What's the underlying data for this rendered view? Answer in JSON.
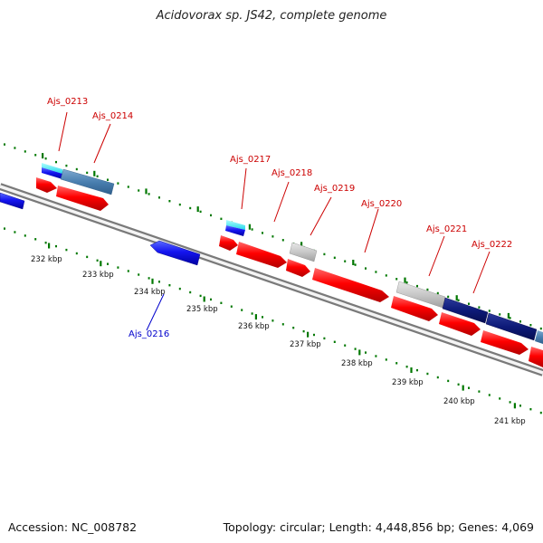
{
  "title": "Acidovorax sp. JS42, complete genome",
  "footer": {
    "accession": "Accession: NC_008782",
    "summary": "Topology: circular; Length: 4,448,856 bp; Genes: 4,069"
  },
  "colors": {
    "forward_gene": "#ff0000",
    "reverse_gene": "#0000ee",
    "hypothetical": "#c8c8c8",
    "tick": "#007700",
    "label_red": "#cc0000",
    "label_blue": "#0000cc",
    "backbone": "#8a8a8a"
  },
  "scale_labels": [
    "232 kbp",
    "233 kbp",
    "234 kbp",
    "235 kbp",
    "236 kbp",
    "237 kbp",
    "238 kbp",
    "239 kbp",
    "240 kbp",
    "241 kbp"
  ],
  "gene_labels": [
    {
      "text": "Ajs_0213",
      "color": "red"
    },
    {
      "text": "Ajs_0214",
      "color": "red"
    },
    {
      "text": "Ajs_0216",
      "color": "blue"
    },
    {
      "text": "Ajs_0217",
      "color": "red"
    },
    {
      "text": "Ajs_0218",
      "color": "red"
    },
    {
      "text": "Ajs_0219",
      "color": "red"
    },
    {
      "text": "Ajs_0220",
      "color": "red"
    },
    {
      "text": "Ajs_0221",
      "color": "red"
    },
    {
      "text": "Ajs_0222",
      "color": "red"
    }
  ]
}
